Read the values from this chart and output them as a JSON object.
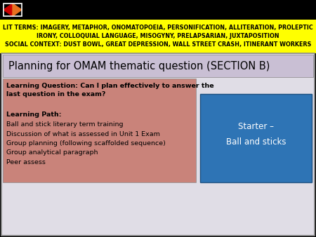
{
  "bg_color": "#000000",
  "header_bg": "#ffff00",
  "header_text_color": "#000000",
  "header_line1": "LIT TERMS: IMAGERY, METAPHOR, ONOMATOPOEIA, PERSONIFICATION, ALLITERATION, PROLEPTIC",
  "header_line2": "IRONY, COLLOQUIAL LANGUAGE, MISOGYNY, PRELAPSARIAN, JUXTAPOSITION",
  "header_line3_bold1": "SOCIAL CONTEXT:",
  "header_line3_rest": " DUST BOWL, GREAT DEPRESSION, WALL STREET CRASH, ITINERANT WORKERS",
  "title_text": "Planning for OMAM thematic question (SECTION B)",
  "title_bg": "#c9bfd4",
  "title_text_color": "#000000",
  "content_bg": "#e0dde6",
  "left_box_bg": "#c9837a",
  "left_box_text_color": "#000000",
  "left_box_bold1": "Learning Question: Can I plan effectively to answer the",
  "left_box_bold2": "last question in the exam?",
  "left_box_lines": [
    "",
    "Learning Path:",
    "Ball and stick literary term training",
    "Discussion of what is assessed in Unit 1 Exam",
    "Group planning (following scaffolded sequence)",
    "Group analytical paragraph",
    "Peer assess"
  ],
  "right_box_bg": "#2e74b5",
  "right_box_text_color": "#ffffff",
  "right_box_line1": "Starter –",
  "right_box_line2": "Ball and sticks",
  "arrow_left_color": "#cc0000",
  "arrow_right_color": "#e87020",
  "border_color": "#888888"
}
